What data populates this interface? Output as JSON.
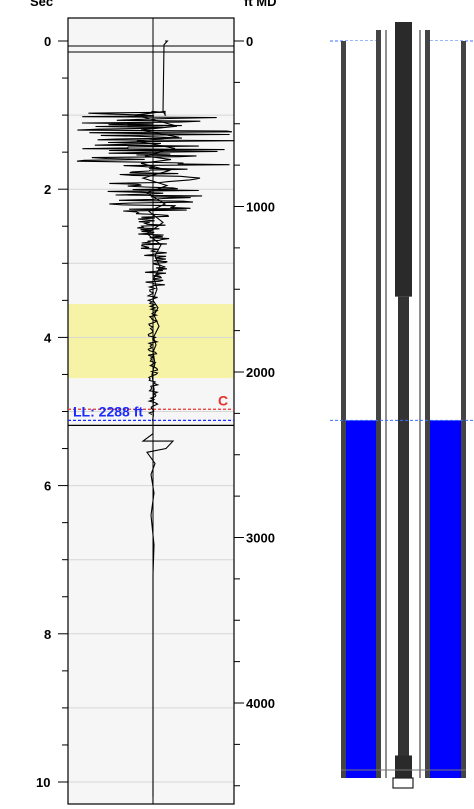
{
  "chart_data": {
    "type": "line",
    "title": "",
    "left_axis": {
      "label": "Sec",
      "range": [
        -0.4,
        10.4
      ],
      "ticks": [
        0,
        2,
        4,
        6,
        8,
        10
      ]
    },
    "right_axis": {
      "label": "ft MD",
      "range": [
        -140,
        4630
      ],
      "ticks": [
        0,
        1000,
        2000,
        3000,
        4000
      ]
    },
    "grid": true,
    "highlight_zone": {
      "from_sec": 3.55,
      "to_sec": 4.55,
      "color": "#f7f3a6"
    },
    "liquid_level": {
      "label": "LL: 2288 ft",
      "depth_ft": 2288,
      "sec": 5.12,
      "color": "#1a2bff"
    },
    "collar_marker": {
      "label": "C",
      "sec": 4.97,
      "color": "#e8322d"
    },
    "series": [
      {
        "values_x": [
          0.6,
          0.72,
          0.55,
          0.5,
          0.62,
          0.6,
          0.6,
          -0.9,
          0.55,
          1.2,
          -0.6,
          1.3,
          -0.8,
          1.1,
          -0.4,
          0.9,
          -0.6,
          0.8,
          -0.5,
          0.7,
          -0.3,
          0.6,
          -0.2,
          0.5,
          -0.3,
          0.4,
          0.1,
          0.35,
          0.05,
          0.2,
          0.0,
          0.25,
          0.05,
          0.3,
          0.02,
          0.15,
          0.0,
          0.1,
          -0.05,
          0.05,
          0.02,
          0.0,
          0.02,
          -0.02,
          0.0,
          0.0,
          0.0,
          -0.5,
          1.0,
          0.65,
          -0.3,
          0.1,
          -0.1,
          0.05,
          -0.1,
          0.05,
          0.0,
          0.0,
          0.0,
          0.0,
          0.0
        ],
        "values_y": [
          0,
          0.0,
          0.05,
          0.95,
          1.0,
          1.0,
          0.95,
          1.0,
          1.1,
          1.15,
          1.2,
          1.3,
          1.35,
          1.45,
          1.55,
          1.6,
          1.65,
          1.75,
          1.85,
          1.95,
          2.05,
          2.2,
          2.3,
          2.45,
          2.6,
          2.75,
          2.9,
          3.05,
          3.2,
          3.35,
          3.5,
          3.6,
          3.7,
          3.85,
          4.0,
          4.1,
          4.2,
          4.35,
          4.5,
          4.7,
          4.85,
          4.95,
          5.05,
          5.12,
          5.13,
          5.14,
          5.3,
          5.4,
          5.4,
          5.5,
          5.55,
          5.7,
          5.85,
          6.1,
          6.4,
          6.8,
          7.2,
          7.6,
          8.2,
          9.0,
          10.2
        ]
      }
    ],
    "wellbore": {
      "liquid_color": "#0000ff",
      "casing_top_sec": 0,
      "rod_string_end_sec": 3.45,
      "liquid_top_sec": 5.12,
      "pump_sec": 9.75
    }
  }
}
